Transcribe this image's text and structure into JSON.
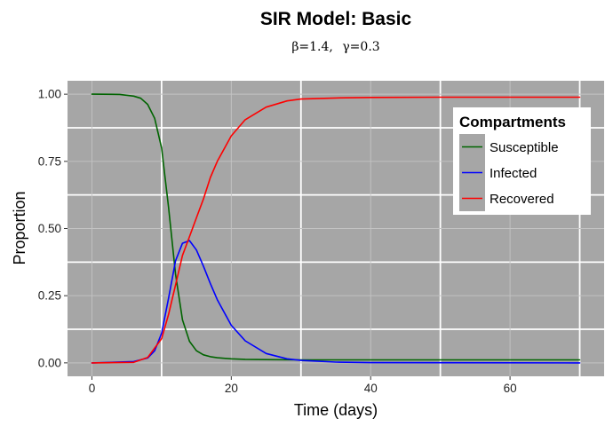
{
  "chart_data": {
    "type": "line",
    "title": "SIR Model: Basic",
    "subtitle_parts": [
      "β=1.4,",
      "γ=0.3"
    ],
    "xlabel": "Time (days)",
    "ylabel": "Proportion",
    "xlim": [
      -3.5,
      73.5
    ],
    "ylim": [
      -0.05,
      1.05
    ],
    "x_ticks": [
      0,
      20,
      40,
      60
    ],
    "x_tick_labels": [
      "0",
      "20",
      "40",
      "60"
    ],
    "y_ticks": [
      0,
      0.25,
      0.5,
      0.75,
      1.0
    ],
    "y_tick_labels": [
      "0.00",
      "0.25",
      "0.50",
      "0.75",
      "1.00"
    ],
    "x_minor_ticks": [
      10,
      30,
      50,
      70
    ],
    "y_minor_ticks": [
      0.125,
      0.375,
      0.625,
      0.875
    ],
    "grid": true,
    "panel_color": "#a6a6a6",
    "legend": {
      "title": "Compartments",
      "position": "top-right",
      "entries": [
        "Susceptible",
        "Infected",
        "Recovered"
      ]
    },
    "series": [
      {
        "name": "Susceptible",
        "color": "#006400",
        "x": [
          0,
          4,
          6,
          7,
          8,
          9,
          10,
          11,
          12,
          13,
          14,
          15,
          16,
          17,
          18,
          20,
          22,
          25,
          30,
          40,
          50,
          70
        ],
        "y": [
          1.0,
          0.999,
          0.993,
          0.985,
          0.962,
          0.91,
          0.8,
          0.58,
          0.33,
          0.16,
          0.08,
          0.045,
          0.03,
          0.023,
          0.019,
          0.015,
          0.013,
          0.012,
          0.011,
          0.011,
          0.011,
          0.011
        ]
      },
      {
        "name": "Infected",
        "color": "#0000ff",
        "x": [
          0,
          6,
          8,
          9,
          10,
          11,
          12,
          13,
          14,
          15,
          16,
          17,
          18,
          20,
          22,
          25,
          28,
          30,
          35,
          40,
          70
        ],
        "y": [
          0.0,
          0.005,
          0.018,
          0.045,
          0.11,
          0.24,
          0.38,
          0.445,
          0.455,
          0.42,
          0.36,
          0.295,
          0.235,
          0.14,
          0.082,
          0.035,
          0.015,
          0.009,
          0.003,
          0.001,
          0.0
        ]
      },
      {
        "name": "Recovered",
        "color": "#ff0000",
        "x": [
          0,
          6,
          8,
          10,
          11,
          12,
          13,
          14,
          15,
          16,
          17,
          18,
          20,
          22,
          25,
          28,
          30,
          35,
          40,
          50,
          70
        ],
        "y": [
          0.0,
          0.002,
          0.02,
          0.09,
          0.18,
          0.29,
          0.4,
          0.47,
          0.54,
          0.61,
          0.69,
          0.75,
          0.845,
          0.905,
          0.952,
          0.975,
          0.982,
          0.986,
          0.988,
          0.989,
          0.989
        ]
      }
    ]
  }
}
